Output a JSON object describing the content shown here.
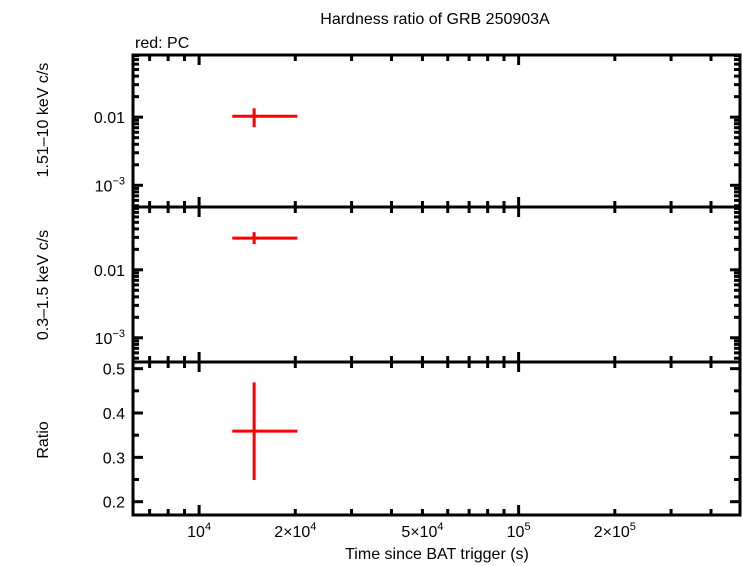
{
  "chart_data": {
    "type": "scatter",
    "title": "Hardness ratio of GRB 250903A",
    "legend_note": "red: PC",
    "xlabel": "Time since BAT trigger (s)",
    "xscale": "log",
    "xlim": [
      6210,
      493000
    ],
    "x_ticks": [
      {
        "value": 10000,
        "label": "10",
        "sup": "4"
      },
      {
        "value": 20000,
        "label": "2×10",
        "sup": "4"
      },
      {
        "value": 50000,
        "label": "5×10",
        "sup": "4"
      },
      {
        "value": 100000,
        "label": "10",
        "sup": "5"
      },
      {
        "value": 200000,
        "label": "2×10",
        "sup": "5"
      }
    ],
    "colors": {
      "PC": "#ff0000",
      "axes": "#000000"
    },
    "panels": [
      {
        "ylabel": "1.51–10 keV c/s",
        "yscale": "log",
        "ylim": [
          0.00048,
          0.0817
        ],
        "y_ticks": [
          {
            "value": 0.01,
            "label": "0.01",
            "sup": ""
          },
          {
            "value": 0.001,
            "label": "10",
            "sup": "−3"
          }
        ],
        "series": [
          {
            "mode": "PC",
            "points": [
              {
                "x": 14870,
                "xlo": 12700,
                "xhi": 20300,
                "y": 0.0103,
                "ylo": 0.0071,
                "yhi": 0.0135
              }
            ]
          }
        ]
      },
      {
        "ylabel": "0.3–1.5 keV c/s",
        "yscale": "log",
        "ylim": [
          0.00044,
          0.084
        ],
        "y_ticks": [
          {
            "value": 0.01,
            "label": "0.01",
            "sup": ""
          },
          {
            "value": 0.001,
            "label": "10",
            "sup": "−3"
          }
        ],
        "series": [
          {
            "mode": "PC",
            "points": [
              {
                "x": 14870,
                "xlo": 12700,
                "xhi": 20300,
                "y": 0.0292,
                "ylo": 0.0239,
                "yhi": 0.0358
              }
            ]
          }
        ]
      },
      {
        "ylabel": "Ratio",
        "yscale": "linear",
        "ylim": [
          0.17,
          0.515
        ],
        "y_ticks": [
          {
            "value": 0.5,
            "label": "0.5",
            "sup": ""
          },
          {
            "value": 0.4,
            "label": "0.4",
            "sup": ""
          },
          {
            "value": 0.3,
            "label": "0.3",
            "sup": ""
          },
          {
            "value": 0.2,
            "label": "0.2",
            "sup": ""
          }
        ],
        "series": [
          {
            "mode": "PC",
            "points": [
              {
                "x": 14870,
                "xlo": 12700,
                "xhi": 20300,
                "y": 0.359,
                "ylo": 0.249,
                "yhi": 0.469
              }
            ]
          }
        ]
      }
    ]
  }
}
